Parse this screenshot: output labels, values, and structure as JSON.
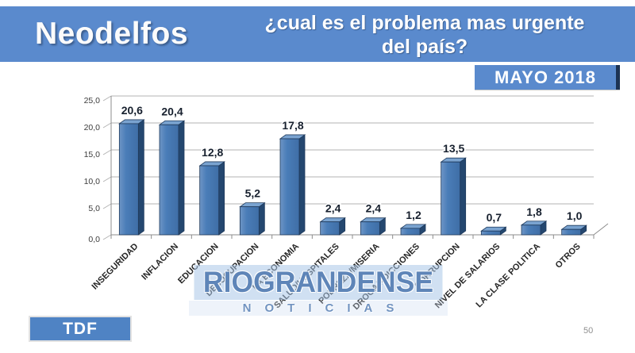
{
  "slide": {
    "brand": "Neodelfos",
    "title_line1": "¿cual es el problema mas urgente",
    "title_line2": "del país?",
    "period_badge": "MAYO 2018",
    "region_badge": "TDF",
    "page_number": "50"
  },
  "watermark": {
    "line1": "RIOGRANDENSE",
    "line2": "NOTICIAS"
  },
  "colors": {
    "banner_blue": "#5a8acd",
    "badge_accent_dark": "#1d3353",
    "bar_front": "#4a7db8",
    "bar_front_light": "#6e95c5",
    "bar_front_dark": "#3f6ea6",
    "bar_side": "#24476f",
    "bar_top": "#7aa3d0",
    "bar_outline": "#1f3a5c",
    "gridline": "#b3b3b3",
    "axis": "#8c8c8c",
    "value_label": "#17202e",
    "category_label": "#262626",
    "tick_label": "#3c3c3c"
  },
  "chart_data": {
    "type": "bar",
    "style": "3d-column",
    "title": "",
    "xlabel": "",
    "ylabel": "",
    "categories": [
      "INSEGURIDAD",
      "INFLACION",
      "EDUCACION",
      "DESOCUPACION",
      "LA ECONOMIA",
      "SALUD/HOSPITALES",
      "POBREZA/MISERIA",
      "DROGA/ADICCIONES",
      "CORRUPCION",
      "NIVEL DE SALARIOS",
      "LA CLASE POLITICA",
      "OTROS"
    ],
    "values": [
      20.6,
      20.4,
      12.8,
      5.2,
      17.8,
      2.4,
      2.4,
      1.2,
      13.5,
      0.7,
      1.8,
      1.0
    ],
    "value_labels": [
      "20,6",
      "20,4",
      "12,8",
      "5,2",
      "17,8",
      "2,4",
      "2,4",
      "1,2",
      "13,5",
      "0,7",
      "1,8",
      "1,0"
    ],
    "ylim": [
      0,
      25
    ],
    "yticks": [
      0,
      5,
      10,
      15,
      20,
      25
    ],
    "ytick_labels": [
      "0,0",
      "5,0",
      "10,0",
      "15,0",
      "20,0",
      "25,0"
    ],
    "grid": true,
    "data_labels": true,
    "legend": false
  }
}
